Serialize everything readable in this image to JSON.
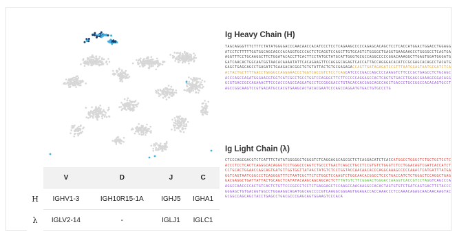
{
  "table": {
    "columns": [
      "V",
      "D",
      "J",
      "C"
    ],
    "rows": [
      {
        "label": "H",
        "cells": [
          "IGHV1-3",
          "IGH10R15-1A",
          "IGHJ5",
          "IGHA1"
        ]
      },
      {
        "label": "λ",
        "cells": [
          "IGLV2-14",
          "-",
          "IGLJ1",
          "IGLC1"
        ]
      }
    ]
  },
  "heavy": {
    "title": "Ig Heavy Chain (H)",
    "segments": [
      {
        "type": "lead",
        "seq": "TAGCAGGGTTTCTTTCTATATGGGGACCCAACAACCACATCCCTCCTCAGAAGCCCCCAGAGCACAGCTCCTCACCATGGACTGGACCTGGAGGATCCTCTTTTTGGTGGCAGCAGCCACAGGTGCCCACTCTCAGGTCCAGCTTGTGCAGTCTGGGGCTGAGGTGAAGAAGCCTGGGGCCTCAGTGAAGGTTTCCTGCAAGGCTTCTGGATACACCTTCACTTCCTATGCTATGCATTGGGTGCGCCAGGCCCCCGGACAAAGGCTTGAGTGGATGGGATGGATCAACACTGGCAATGGTAACACAAAATATTCACAGAAGTTCCAGGGCAGAGTCACCATTACCAGGGACACATCCGCGAGCACAGCCTACATGGAGCTGAGCAGCCTGAGATCTGAAGACACGGCTGTGTATTACTGTGCGAGAGA"
      },
      {
        "type": "D",
        "seq": "CCAGTTGATAGAGATCCGTTTAATGGAGTAATGCGATCTCAACTACTGCTTTTGACCTGGGGCCAGGGAACCCTGGTCACCGTCTCCTCAG"
      },
      {
        "type": "C",
        "seq": "CATCCCCGACCAGCCCCAAGGTCTTCCCGCTGAGCCTCTGCAGCACCCAGCCAGATGGGAACGTGGTCATCGCCTGCCTGGTCCAGGGCTTCTTCCCCCAGGAGCCACTCAGTGTGACCTGGAGCGAAAGCGGACAGGGCGTGACCGCCAGAAACTTCCCACCCAGCCAGGATGCCTCCGGGGACCTGTACACCACGAGCAGCCAGCTGACCCTGCCGGCCACACAGTGCCTAGCCGGCAAGTCCGTGACATGCCACGTGAAGCACTACACGAATCCCAGCCAGGATGTGACTGTGCCCTG"
      }
    ]
  },
  "light": {
    "title": "Ig Light Chain (λ)",
    "segments": [
      {
        "type": "lead",
        "seq": "CTCCCAGCGACGTCTCATTTCTATATGGGGGCTGGGGTCTCAGGAGGCAGCGCTCTCAGGACATCTCACC"
      },
      {
        "type": "V",
        "seq": "ATGGCCTGGGCTCTGCTGCTCCTCACCCTCCTCACTCAGGGCACAGGGTCCTGGGCCCAGTCTGCCCTGACTCAGCCTGCCTCCGTGTCTGGGTCTCCTGGACAGTCGATCACCATCTCCTGCACTGGAACCAGCAGTGATGTTGGTGGTTATAACTATGTCTCCTGGTACCAACAACACCCAGGCAAAGCCCCCAAACTCATGATTTATGAGGTCAGTAATCGGCCCTCAGGGGTTTCTAATCGCTTCTCTGGCTCCAAGTCTGGCAACACGGCCTCCCTGACCATCTCTGGGCTCCAGGCTGAGGACGAGGCTGATTATTACTGCAGCTCATATACAAGCAGCAGCACTCT"
      },
      {
        "type": "J",
        "seq": "TTATGTCTTCGGAACTGGGACCAAGGTCACCGTCCTAG"
      },
      {
        "type": "C",
        "seq": "GTCAGCCCAAGGCCAACCCCACTGTCACTCTGTTCCCGCCCTCCTCTGAGGAGCTCCAAGCCAACAAGGCCACACTAGTGTGTCTGATCAGTGACTTCTACCCGGGAGCTGTGACAGTGGCCTGGAAGGCAGATGGCAGCCCCGTCAAGGCGGGAGTGGAGACCACCAAACCCTCCAAACAGAGCAACAACAAGTACGCGGCCAGCAGCTACCTGAGCCTGACGCCCGAGCAGTGGAAGTCCCACA"
      }
    ]
  },
  "scatter_colors": {
    "background": "#d7d7d7",
    "highlight_dark": "#17406e",
    "highlight_light": "#3fb0e6"
  }
}
